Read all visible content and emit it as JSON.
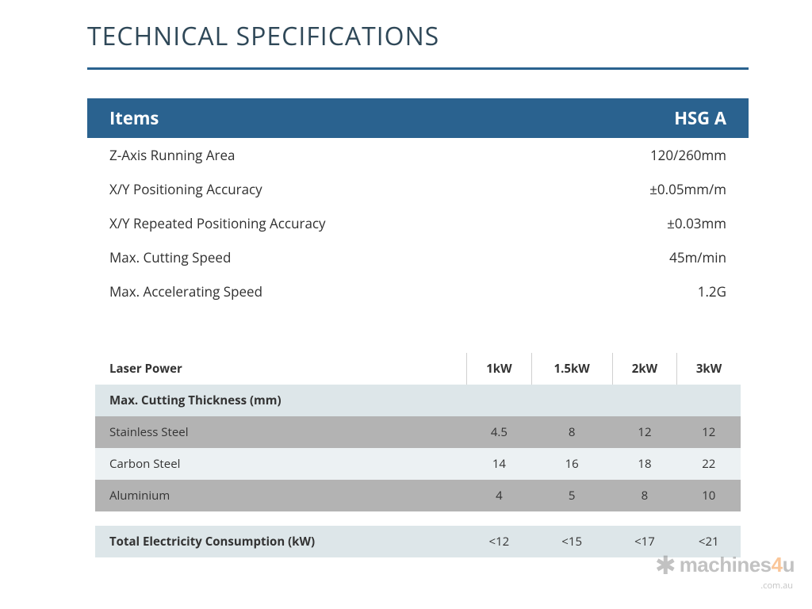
{
  "title": "TECHNICAL SPECIFICATIONS",
  "colors": {
    "title_text": "#2f4858",
    "rule": "#2a628f",
    "header_bg": "#2a628f",
    "header_text": "#ffffff",
    "body_text": "#2f2f2f",
    "section_bg": "#dde6e9",
    "grey_row_bg": "#b3b3b3",
    "light_row_bg": "#ecf1f3",
    "cell_border": "#d0d0d0",
    "watermark_grey": "#7a7a7a",
    "watermark_accent": "#f58320"
  },
  "spec_table": {
    "header": {
      "left": "Items",
      "right": "HSG A"
    },
    "rows": [
      {
        "label": "Z-Axis Running Area",
        "value": "120/260mm"
      },
      {
        "label": "X/Y Positioning Accuracy",
        "value": "±0.05mm/m"
      },
      {
        "label": "X/Y Repeated Positioning Accuracy",
        "value": "±0.03mm"
      },
      {
        "label": "Max. Cutting Speed",
        "value": "45m/min"
      },
      {
        "label": "Max. Accelerating Speed",
        "value": "1.2G"
      }
    ]
  },
  "power_table": {
    "columns": [
      "Laser Power",
      "1kW",
      "1.5kW",
      "2kW",
      "3kW"
    ],
    "section_header": "Max. Cutting Thickness (mm)",
    "materials": [
      {
        "name": "Stainless Steel",
        "values": [
          "4.5",
          "8",
          "12",
          "12"
        ],
        "style": "grey"
      },
      {
        "name": "Carbon Steel",
        "values": [
          "14",
          "16",
          "18",
          "22"
        ],
        "style": "light"
      },
      {
        "name": "Aluminium",
        "values": [
          "4",
          "5",
          "8",
          "10"
        ],
        "style": "grey"
      }
    ],
    "total": {
      "label": "Total Electricity Consumption (kW)",
      "values": [
        "<12",
        "<15",
        "<17",
        "<21"
      ]
    }
  },
  "watermark": {
    "brand_a": "machines",
    "brand_b": "4",
    "brand_c": "u",
    "tld": ".com.au"
  }
}
